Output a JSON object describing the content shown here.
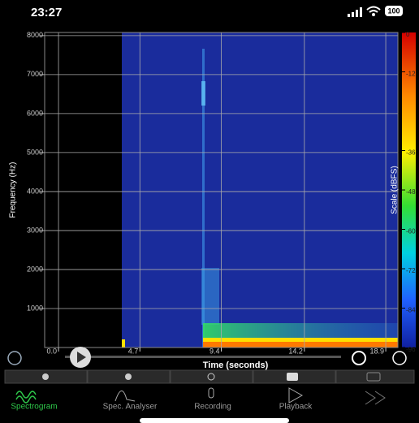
{
  "status_bar": {
    "time": "23:27",
    "battery": "100"
  },
  "spectrogram": {
    "type": "heatmap",
    "xlabel": "Time (seconds)",
    "ylabel": "Frequency (Hz)",
    "xlim": [
      -0.8,
      19.6
    ],
    "xticks": [
      {
        "value": 0,
        "label": "0.0"
      },
      4.7,
      9.4,
      14.2,
      18.9
    ],
    "ylim": [
      0,
      8080
    ],
    "yticks": [
      1000,
      2000,
      3000,
      4000,
      5000,
      6000,
      7000,
      8000
    ],
    "grid": true,
    "colorbar": {
      "label": "Scale (dBFS)",
      "lim": [
        -96,
        0
      ],
      "ticks": [
        0,
        -12,
        -36,
        -48,
        -60,
        -72,
        -84,
        -96
      ]
    }
  },
  "tabs": [
    "Spectrogram",
    "Spec. Analyser",
    "Recording",
    "Playback"
  ]
}
